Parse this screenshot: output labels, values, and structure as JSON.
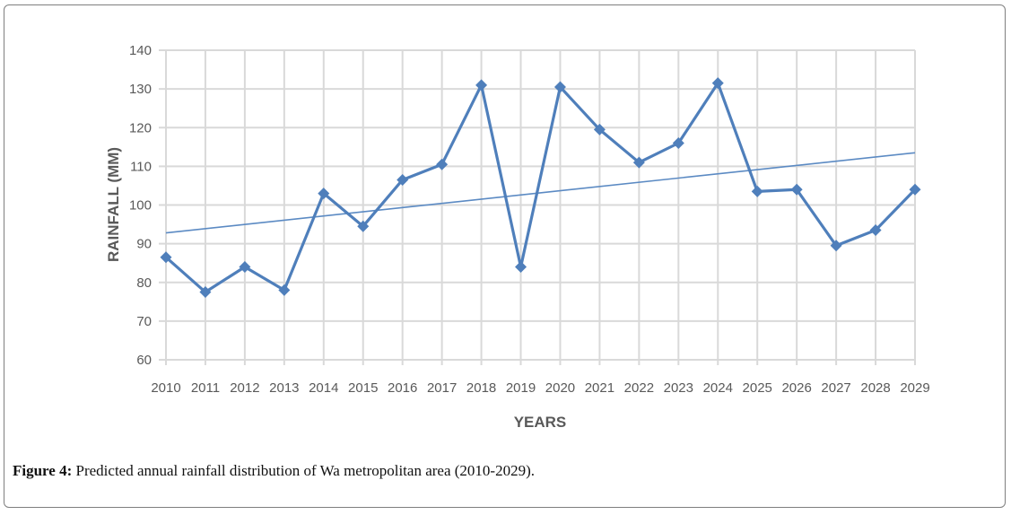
{
  "caption": {
    "label": "Figure 4:",
    "text": "Predicted annual rainfall distribution of Wa metropolitan area (2010-2029)."
  },
  "colors": {
    "series": "#4f7fbb",
    "trendline": "#5b8ac3",
    "gridline": "#d9d9d9",
    "tick_text": "#595959",
    "border": "#7f7f7f"
  },
  "chart_data": {
    "type": "line",
    "title": "",
    "xlabel": "YEARS",
    "ylabel": "RAINFALL (MM)",
    "ylim": [
      60,
      140
    ],
    "yticks": [
      60,
      70,
      80,
      90,
      100,
      110,
      120,
      130,
      140
    ],
    "grid": true,
    "legend": "none",
    "categories": [
      "2010",
      "2011",
      "2012",
      "2013",
      "2014",
      "2015",
      "2016",
      "2017",
      "2018",
      "2019",
      "2020",
      "2021",
      "2022",
      "2023",
      "2024",
      "2025",
      "2026",
      "2027",
      "2028",
      "2029"
    ],
    "series": [
      {
        "marker": "diamond",
        "values": [
          86.5,
          77.5,
          84,
          78,
          103,
          94.5,
          106.5,
          110.5,
          131,
          84,
          130.5,
          119.5,
          111,
          116,
          131.5,
          103.5,
          104,
          89.5,
          93.5,
          104
        ]
      }
    ],
    "trendline": {
      "type": "linear",
      "start_value": 92.8,
      "end_value": 113.5
    }
  }
}
